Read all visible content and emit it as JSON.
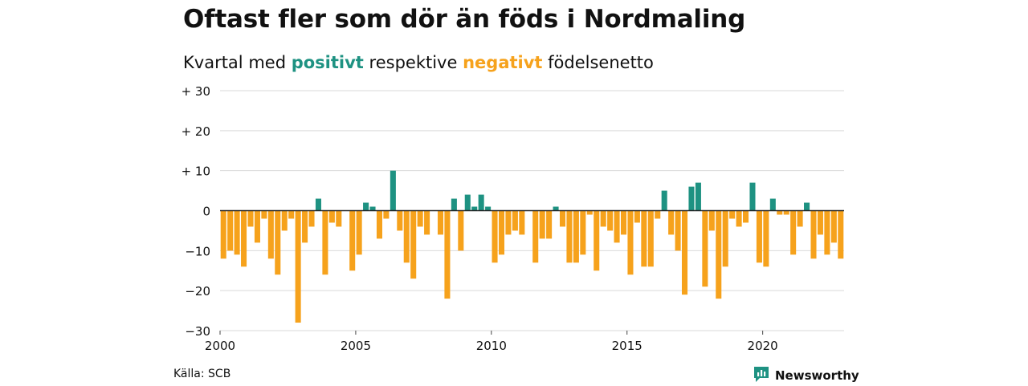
{
  "colors": {
    "positive": "#1e9282",
    "negative": "#f6a21c",
    "grid": "#d9d9d9",
    "zero": "#222222"
  },
  "header": {
    "title": "Oftast fler som dör än föds i Nordmaling",
    "subtitle_prefix": "Kvartal med",
    "subtitle_positive": "positivt",
    "subtitle_middle": "respektive",
    "subtitle_negative": "negativt",
    "subtitle_suffix": "födelsenetto"
  },
  "footer": {
    "source": "Källa: SCB",
    "brand": "Newsworthy",
    "brand_icon": "newsworthy-logo-icon"
  },
  "chart_data": {
    "type": "bar",
    "xlim": [
      2000,
      2023
    ],
    "ylim": [
      -30,
      30
    ],
    "yticks": [
      30,
      20,
      10,
      0,
      -10,
      -20,
      -30
    ],
    "ytick_labels": [
      "+ 30",
      "+ 20",
      "+ 10",
      "0",
      "−10",
      "−20",
      "−30"
    ],
    "xticks": [
      2000,
      2005,
      2010,
      2015,
      2020
    ],
    "xtick_labels": [
      "2000",
      "2005",
      "2010",
      "2015",
      "2020"
    ],
    "grid": true,
    "categories": [
      "2000 K1",
      "2000 K2",
      "2000 K3",
      "2000 K4",
      "2001 K1",
      "2001 K2",
      "2001 K3",
      "2001 K4",
      "2002 K1",
      "2002 K2",
      "2002 K3",
      "2002 K4",
      "2003 K1",
      "2003 K2",
      "2003 K3",
      "2003 K4",
      "2004 K1",
      "2004 K2",
      "2004 K3",
      "2004 K4",
      "2005 K1",
      "2005 K2",
      "2005 K3",
      "2005 K4",
      "2006 K1",
      "2006 K2",
      "2006 K3",
      "2006 K4",
      "2007 K1",
      "2007 K2",
      "2007 K3",
      "2007 K4",
      "2008 K1",
      "2008 K2",
      "2008 K3",
      "2008 K4",
      "2009 K1",
      "2009 K2",
      "2009 K3",
      "2009 K4",
      "2010 K1",
      "2010 K2",
      "2010 K3",
      "2010 K4",
      "2011 K1",
      "2011 K2",
      "2011 K3",
      "2011 K4",
      "2012 K1",
      "2012 K2",
      "2012 K3",
      "2012 K4",
      "2013 K1",
      "2013 K2",
      "2013 K3",
      "2013 K4",
      "2014 K1",
      "2014 K2",
      "2014 K3",
      "2014 K4",
      "2015 K1",
      "2015 K2",
      "2015 K3",
      "2015 K4",
      "2016 K1",
      "2016 K2",
      "2016 K3",
      "2016 K4",
      "2017 K1",
      "2017 K2",
      "2017 K3",
      "2017 K4",
      "2018 K1",
      "2018 K2",
      "2018 K3",
      "2018 K4",
      "2019 K1",
      "2019 K2",
      "2019 K3",
      "2019 K4",
      "2020 K1",
      "2020 K2",
      "2020 K3",
      "2020 K4",
      "2021 K1",
      "2021 K2",
      "2021 K3",
      "2021 K4",
      "2022 K1",
      "2022 K2",
      "2022 K3",
      "2022 K4"
    ],
    "values": [
      -12,
      -10,
      -11,
      -14,
      -4,
      -8,
      -2,
      -12,
      -16,
      -5,
      -2,
      -28,
      -8,
      -4,
      3,
      -16,
      -3,
      -4,
      0,
      -15,
      -11,
      2,
      1,
      -7,
      -2,
      10,
      -5,
      -13,
      -17,
      -4,
      -6,
      0,
      -6,
      -22,
      3,
      -10,
      4,
      1,
      4,
      1,
      -13,
      -11,
      -6,
      -5,
      -6,
      0,
      -13,
      -7,
      -7,
      1,
      -4,
      -13,
      -13,
      -11,
      -1,
      -15,
      -4,
      -5,
      -8,
      -6,
      -16,
      -3,
      -14,
      -14,
      -2,
      5,
      -6,
      -10,
      -21,
      6,
      7,
      -19,
      -5,
      -22,
      -14,
      -2,
      -4,
      -3,
      7,
      -13,
      -14,
      3,
      -1,
      -1,
      -11,
      -4,
      2,
      -12,
      -6,
      -11,
      -8,
      -12
    ]
  }
}
